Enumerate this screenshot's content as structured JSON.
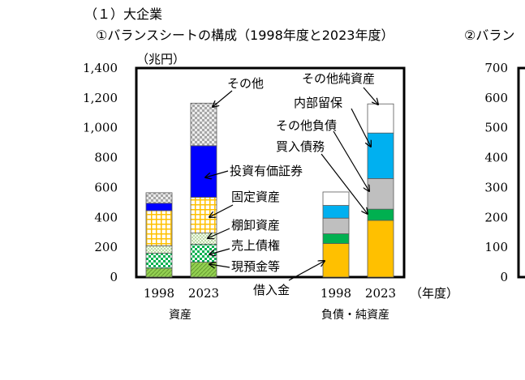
{
  "section_heading": "（１）大企業",
  "chart_data": [
    {
      "type": "bar",
      "stacked": true,
      "title": "①バランスシートの構成（1998年度と2023年度）",
      "ylabel": "（兆円）",
      "ylim": [
        0,
        1400
      ],
      "yticks": [
        "0",
        "200",
        "400",
        "600",
        "800",
        "1,000",
        "1,200",
        "1,400"
      ],
      "ytick_values": [
        0,
        200,
        400,
        600,
        800,
        1000,
        1200,
        1400
      ],
      "x_unit_label": "（年度）",
      "groups": [
        {
          "label": "資産",
          "categories": [
            "1998",
            "2023"
          ],
          "series": [
            {
              "name": "現預金等",
              "values": [
                60,
                100
              ],
              "color": "#92d050",
              "pattern": "hatch-green"
            },
            {
              "name": "売上債権",
              "values": [
                100,
                120
              ],
              "color": "#00b050",
              "pattern": "check-green"
            },
            {
              "name": "棚卸資産",
              "values": [
                50,
                75
              ],
              "color": "#e2efda",
              "pattern": "dots"
            },
            {
              "name": "固定資産",
              "values": [
                235,
                240
              ],
              "color": "#ffc000",
              "pattern": "grid-yellow"
            },
            {
              "name": "投資有価証券",
              "values": [
                50,
                345
              ],
              "color": "#0000ff",
              "pattern": "solid"
            },
            {
              "name": "その他",
              "values": [
                70,
                285
              ],
              "color": "#bfbfbf",
              "pattern": "check-gray"
            }
          ]
        },
        {
          "label": "負債・純資産",
          "categories": [
            "1998",
            "2023"
          ],
          "series": [
            {
              "name": "借入金",
              "values": [
                225,
                380
              ],
              "color": "#ffc000",
              "pattern": "solid"
            },
            {
              "name": "買入債務",
              "values": [
                65,
                75
              ],
              "color": "#00b050",
              "pattern": "solid"
            },
            {
              "name": "その他負債",
              "values": [
                105,
                205
              ],
              "color": "#bfbfbf",
              "pattern": "solid"
            },
            {
              "name": "内部留保",
              "values": [
                85,
                305
              ],
              "color": "#00b0f0",
              "pattern": "solid"
            },
            {
              "name": "その他純資産",
              "values": [
                90,
                195
              ],
              "color": "#ffffff",
              "pattern": "solid"
            }
          ]
        }
      ],
      "annotations": [
        "その他",
        "投資有価証券",
        "固定資産",
        "棚卸資産",
        "売上債権",
        "現預金等",
        "借入金",
        "その他純資産",
        "内部留保",
        "その他負債",
        "買入債務"
      ]
    },
    {
      "type": "bar",
      "title": "②バラン",
      "ylabel": "（",
      "ylim": [
        0,
        700
      ],
      "yticks": [
        "0",
        "100",
        "200",
        "300",
        "400",
        "500",
        "600",
        "700"
      ],
      "ytick_values": [
        0,
        100,
        200,
        300,
        400,
        500,
        600,
        700
      ]
    }
  ]
}
